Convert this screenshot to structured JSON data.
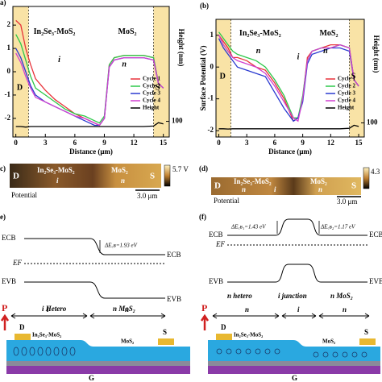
{
  "chart_data": [
    {
      "type": "line",
      "panel_label": "a)",
      "x_label": "Distance (μm)",
      "y2_label": "Height (nm)",
      "annotations": [
        "D",
        "In₂Se₃-MoS₂",
        "i",
        "MoS₂",
        "n",
        "S"
      ],
      "x": [
        0,
        0.5,
        1,
        1.5,
        2,
        3,
        4,
        5,
        6,
        7,
        8,
        8.5,
        9,
        9.5,
        10,
        11,
        12,
        13,
        14,
        14.5,
        15
      ],
      "xlim": [
        -0.3,
        15.6
      ],
      "xticks": [
        0,
        3,
        6,
        9,
        12,
        15
      ],
      "ylim": [
        -2.8,
        2.8
      ],
      "yticks": [
        -2,
        -1,
        0,
        1,
        2
      ],
      "y2lim": [
        40,
        540
      ],
      "y2ticks": [
        100
      ],
      "legend_position": "lower right",
      "series": [
        {
          "name": "Cycle 1",
          "color": "#e8333a",
          "values": [
            2.2,
            2.0,
            1.0,
            0.3,
            -0.3,
            -0.8,
            -1.2,
            -1.5,
            -1.8,
            -2.0,
            -2.2,
            -2.3,
            -2.0,
            0.3,
            0.6,
            0.7,
            0.7,
            0.7,
            0.6,
            -0.5,
            -0.7
          ]
        },
        {
          "name": "Cycle 2",
          "color": "#2ec84a",
          "values": [
            1.6,
            1.2,
            0.5,
            -0.2,
            -0.7,
            -1.0,
            -1.3,
            -1.6,
            -1.8,
            -1.9,
            -2.1,
            -2.2,
            -1.9,
            0.3,
            0.6,
            0.7,
            0.7,
            0.7,
            0.6,
            -0.5,
            -0.7
          ]
        },
        {
          "name": "Cycle 3",
          "color": "#2a3ad0",
          "values": [
            1.0,
            0.6,
            0,
            -0.6,
            -1.0,
            -1.3,
            -1.5,
            -1.7,
            -1.9,
            -2.1,
            -2.3,
            -2.3,
            -2.0,
            0.2,
            0.5,
            0.6,
            0.6,
            0.6,
            0.5,
            -0.5,
            -0.7
          ]
        },
        {
          "name": "Cycle 4",
          "color": "#d040d0",
          "values": [
            0.8,
            0.4,
            -0.2,
            -0.7,
            -1.1,
            -1.3,
            -1.5,
            -1.7,
            -1.9,
            -2.0,
            -2.2,
            -2.3,
            -2.0,
            0.2,
            0.5,
            0.6,
            0.6,
            0.6,
            0.5,
            -0.5,
            -0.7
          ]
        },
        {
          "name": "Height",
          "color": "#000000",
          "axis": "y2",
          "values": [
            80,
            80,
            78,
            80,
            80,
            80,
            80,
            80,
            80,
            80,
            80,
            80,
            80,
            80,
            80,
            80,
            80,
            80,
            82,
            95,
            90
          ]
        }
      ]
    },
    {
      "type": "line",
      "panel_label": "(b)",
      "x_label": "Distance (μm)",
      "y_label": "Surface Potential (V)",
      "y2_label": "Height (nm)",
      "annotations": [
        "D",
        "In₂Se₃-MoS₂",
        "n",
        "i",
        "MoS₂",
        "n",
        "S"
      ],
      "x": [
        0,
        0.5,
        1,
        1.5,
        2,
        3,
        4,
        5,
        6,
        7,
        8,
        8.5,
        9,
        9.5,
        10,
        11,
        12,
        13,
        14,
        14.5,
        15
      ],
      "xlim": [
        -0.3,
        15.6
      ],
      "xticks": [
        0,
        3,
        6,
        9,
        12,
        15
      ],
      "ylim": [
        -2.2,
        1.5
      ],
      "yticks": [
        -2,
        -1,
        0,
        1
      ],
      "y2lim": [
        40,
        540
      ],
      "y2ticks": [
        100
      ],
      "legend_position": "lower right",
      "series": [
        {
          "name": "Cycle 1",
          "color": "#e8333a",
          "values": [
            1.0,
            0.8,
            0.6,
            0.3,
            0.3,
            0.2,
            0,
            -0.1,
            -0.5,
            -1.0,
            -1.7,
            -1.6,
            -1.0,
            0.3,
            0.5,
            0.6,
            0.7,
            0.7,
            0.6,
            -0.4,
            -0.6
          ]
        },
        {
          "name": "Cycle 2",
          "color": "#2ec84a",
          "values": [
            1.1,
            0.9,
            0.7,
            0.5,
            0.4,
            0.3,
            0.2,
            0,
            -0.4,
            -0.9,
            -1.6,
            -1.6,
            -0.9,
            0.2,
            0.5,
            0.6,
            0.6,
            0.7,
            0.6,
            -0.4,
            -0.6
          ]
        },
        {
          "name": "Cycle 3",
          "color": "#2a3ad0",
          "values": [
            0.9,
            0.6,
            0.4,
            0.2,
            0,
            -0.1,
            -0.2,
            -0.3,
            -0.8,
            -1.3,
            -1.7,
            -1.6,
            -1.1,
            0.1,
            0.4,
            0.5,
            0.6,
            0.6,
            0.5,
            -0.4,
            -0.6
          ]
        },
        {
          "name": "Cycle 4",
          "color": "#d040d0",
          "values": [
            1.0,
            0.7,
            0.5,
            0.3,
            0.2,
            0.1,
            0,
            -0.2,
            -0.6,
            -1.1,
            -1.6,
            -1.7,
            -1.0,
            0.2,
            0.5,
            0.6,
            0.6,
            0.7,
            0.6,
            -0.4,
            -0.6
          ]
        },
        {
          "name": "Height",
          "color": "#000000",
          "axis": "y2",
          "values": [
            75,
            75,
            74,
            75,
            75,
            75,
            75,
            75,
            75,
            75,
            75,
            75,
            75,
            75,
            75,
            75,
            75,
            75,
            77,
            90,
            85
          ]
        }
      ]
    }
  ],
  "panels": {
    "c": {
      "label": "c)",
      "colorbar_label": "5.7 V",
      "caption": "Potential",
      "scale_bar": "3.0 μm",
      "texts": [
        "D",
        "In₂Se₃-MoS₂",
        "i",
        "MoS₂",
        "n",
        "S"
      ]
    },
    "d": {
      "label": "(d)",
      "colorbar_label": "4.3",
      "caption": "Potential",
      "scale_bar": "3.0 μm",
      "texts": [
        "D",
        "In₂Se₃-MoS₂",
        "n",
        "i",
        "MoS₂",
        "n",
        "S"
      ]
    },
    "e": {
      "label": "e)",
      "ecb_left": "ECB",
      "ecb_right": "ECB",
      "ef": "EF",
      "evb_left": "EVB",
      "evb_right": "EVB",
      "delta": "ΔE꜀ʙ=1.93 eV",
      "regions": [
        "i Hetero",
        "n MoS₂"
      ]
    },
    "f": {
      "label": "(f)",
      "ecb_left": "ECB",
      "ecb_right": "ECB",
      "ef": "EF",
      "evb_left": "EVB",
      "evb_right": "EVB",
      "delta1": "ΔE꜀ʙ₁=1.43 eV",
      "delta2": "ΔE꜀ʙ₂=1.17 eV",
      "regions": [
        "n hetero",
        "i junction",
        "n MoS₂"
      ]
    },
    "g": {
      "p": "P",
      "d": "D",
      "s": "S",
      "g": "G",
      "hetero": "In₂Se₃-MoS₂",
      "mos2": "MoS₂",
      "zones": [
        "i",
        "n"
      ]
    },
    "h": {
      "p": "P",
      "d": "D",
      "s": "S",
      "g": "G",
      "hetero": "In₂Se₃-MoS₂",
      "mos2": "MoS₂",
      "zones": [
        "n",
        "i",
        "n"
      ]
    }
  }
}
